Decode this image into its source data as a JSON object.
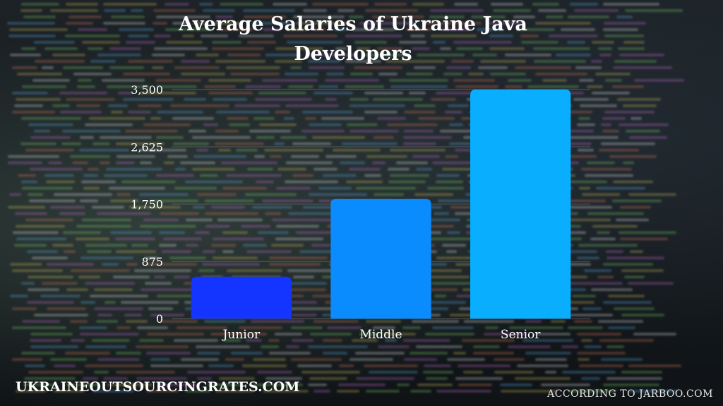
{
  "chart_data": {
    "type": "bar",
    "title": "Average Salaries of Ukraine Java Developers",
    "categories": [
      "Junior",
      "Middle",
      "Senior"
    ],
    "values": [
      640,
      1830,
      3500
    ],
    "bar_colors": [
      "#1434ff",
      "#0a8cff",
      "#09aeff"
    ],
    "ylim": [
      0,
      3500
    ],
    "yticks": [
      "0",
      "875",
      "1,750",
      "2,625",
      "3,500"
    ],
    "ytick_values": [
      0,
      875,
      1750,
      2625,
      3500
    ],
    "grid": true,
    "xlabel": "",
    "ylabel": ""
  },
  "footer": {
    "site": "UKRAINEOUTSOURCINGRATES.COM",
    "source": "ACCORDING TO JARBOO.COM"
  }
}
